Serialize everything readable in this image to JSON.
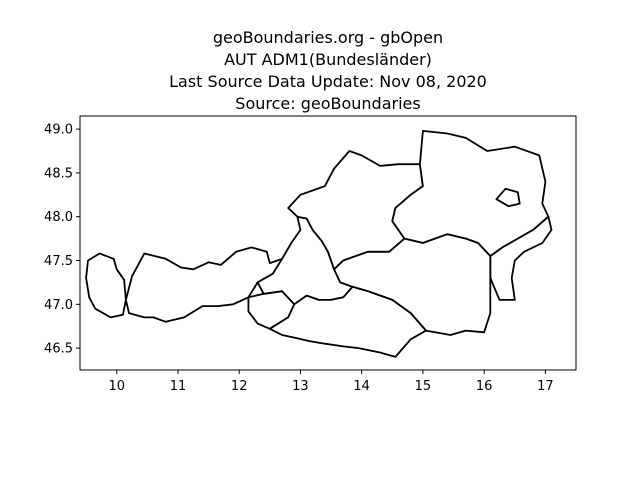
{
  "title_lines": [
    "geoBoundaries.org - gbOpen",
    "AUT ADM1(Bundesländer)",
    "Last Source Data Update: Nov 08, 2020",
    "Source: geoBoundaries"
  ],
  "map": {
    "x_range": [
      9.4,
      17.5
    ],
    "y_range": [
      46.25,
      49.15
    ],
    "x_ticks": [
      10,
      11,
      12,
      13,
      14,
      15,
      16,
      17
    ],
    "y_ticks": [
      46.5,
      47.0,
      47.5,
      48.0,
      48.5,
      49.0
    ],
    "x_tick_labels": [
      "10",
      "11",
      "12",
      "13",
      "14",
      "15",
      "16",
      "17"
    ],
    "y_tick_labels": [
      "46.5",
      "47.0",
      "47.5",
      "48.0",
      "48.5",
      "49.0"
    ],
    "line_color": "#000000",
    "fill_color": "#ffffff",
    "regions": [
      {
        "id": "vorarlberg",
        "coords": [
          [
            9.53,
            47.5
          ],
          [
            9.72,
            47.58
          ],
          [
            9.95,
            47.52
          ],
          [
            10.0,
            47.4
          ],
          [
            10.12,
            47.28
          ],
          [
            10.15,
            47.05
          ],
          [
            10.1,
            46.88
          ],
          [
            9.9,
            46.85
          ],
          [
            9.65,
            46.95
          ],
          [
            9.55,
            47.08
          ],
          [
            9.5,
            47.3
          ],
          [
            9.53,
            47.5
          ]
        ]
      },
      {
        "id": "tirol",
        "coords": [
          [
            10.15,
            47.05
          ],
          [
            10.25,
            47.32
          ],
          [
            10.45,
            47.58
          ],
          [
            10.8,
            47.52
          ],
          [
            11.05,
            47.42
          ],
          [
            11.25,
            47.4
          ],
          [
            11.5,
            47.48
          ],
          [
            11.7,
            47.45
          ],
          [
            11.95,
            47.6
          ],
          [
            12.2,
            47.65
          ],
          [
            12.45,
            47.6
          ],
          [
            12.5,
            47.47
          ],
          [
            12.7,
            47.52
          ],
          [
            12.55,
            47.35
          ],
          [
            12.3,
            47.25
          ],
          [
            12.15,
            47.08
          ],
          [
            11.9,
            47.0
          ],
          [
            11.65,
            46.98
          ],
          [
            11.4,
            46.98
          ],
          [
            11.1,
            46.85
          ],
          [
            10.8,
            46.8
          ],
          [
            10.6,
            46.85
          ],
          [
            10.45,
            46.85
          ],
          [
            10.2,
            46.9
          ],
          [
            10.15,
            47.05
          ]
        ]
      },
      {
        "id": "osttirol",
        "coords": [
          [
            12.15,
            47.08
          ],
          [
            12.4,
            47.12
          ],
          [
            12.7,
            47.15
          ],
          [
            12.9,
            47.0
          ],
          [
            12.8,
            46.85
          ],
          [
            12.5,
            46.72
          ],
          [
            12.3,
            46.78
          ],
          [
            12.15,
            46.92
          ],
          [
            12.15,
            47.08
          ]
        ]
      },
      {
        "id": "salzburg",
        "coords": [
          [
            12.7,
            47.52
          ],
          [
            12.85,
            47.7
          ],
          [
            13.0,
            47.85
          ],
          [
            12.95,
            48.0
          ],
          [
            13.1,
            47.98
          ],
          [
            13.2,
            47.85
          ],
          [
            13.35,
            47.72
          ],
          [
            13.45,
            47.6
          ],
          [
            13.55,
            47.4
          ],
          [
            13.65,
            47.25
          ],
          [
            13.85,
            47.2
          ],
          [
            13.7,
            47.08
          ],
          [
            13.5,
            47.05
          ],
          [
            13.3,
            47.05
          ],
          [
            13.1,
            47.1
          ],
          [
            12.9,
            47.0
          ],
          [
            12.7,
            47.15
          ],
          [
            12.4,
            47.12
          ],
          [
            12.3,
            47.25
          ],
          [
            12.55,
            47.35
          ],
          [
            12.7,
            47.52
          ]
        ]
      },
      {
        "id": "oberoesterreich",
        "coords": [
          [
            13.0,
            48.25
          ],
          [
            13.4,
            48.35
          ],
          [
            13.55,
            48.55
          ],
          [
            13.8,
            48.75
          ],
          [
            14.0,
            48.7
          ],
          [
            14.3,
            48.58
          ],
          [
            14.6,
            48.6
          ],
          [
            14.95,
            48.6
          ],
          [
            15.0,
            48.35
          ],
          [
            14.8,
            48.25
          ],
          [
            14.55,
            48.1
          ],
          [
            14.5,
            47.95
          ],
          [
            14.7,
            47.75
          ],
          [
            14.45,
            47.6
          ],
          [
            14.1,
            47.6
          ],
          [
            13.9,
            47.55
          ],
          [
            13.7,
            47.5
          ],
          [
            13.55,
            47.4
          ],
          [
            13.45,
            47.6
          ],
          [
            13.35,
            47.72
          ],
          [
            13.2,
            47.85
          ],
          [
            13.1,
            47.98
          ],
          [
            12.95,
            48.0
          ],
          [
            12.8,
            48.1
          ],
          [
            13.0,
            48.25
          ]
        ]
      },
      {
        "id": "niederoesterreich",
        "coords": [
          [
            14.95,
            48.6
          ],
          [
            15.0,
            48.98
          ],
          [
            15.4,
            48.95
          ],
          [
            15.7,
            48.9
          ],
          [
            16.05,
            48.75
          ],
          [
            16.5,
            48.8
          ],
          [
            16.9,
            48.7
          ],
          [
            17.0,
            48.4
          ],
          [
            16.95,
            48.15
          ],
          [
            17.05,
            48.0
          ],
          [
            16.8,
            47.85
          ],
          [
            16.55,
            47.75
          ],
          [
            16.3,
            47.65
          ],
          [
            16.1,
            47.55
          ],
          [
            15.9,
            47.7
          ],
          [
            15.7,
            47.75
          ],
          [
            15.4,
            47.8
          ],
          [
            15.0,
            47.7
          ],
          [
            14.7,
            47.75
          ],
          [
            14.5,
            47.95
          ],
          [
            14.55,
            48.1
          ],
          [
            14.8,
            48.25
          ],
          [
            15.0,
            48.35
          ],
          [
            14.95,
            48.6
          ]
        ]
      },
      {
        "id": "wien",
        "coords": [
          [
            16.2,
            48.2
          ],
          [
            16.35,
            48.32
          ],
          [
            16.55,
            48.28
          ],
          [
            16.58,
            48.15
          ],
          [
            16.4,
            48.12
          ],
          [
            16.2,
            48.2
          ]
        ]
      },
      {
        "id": "burgenland",
        "coords": [
          [
            17.05,
            48.0
          ],
          [
            17.1,
            47.85
          ],
          [
            16.95,
            47.7
          ],
          [
            16.65,
            47.6
          ],
          [
            16.5,
            47.5
          ],
          [
            16.45,
            47.3
          ],
          [
            16.5,
            47.05
          ],
          [
            16.25,
            47.05
          ],
          [
            16.1,
            47.3
          ],
          [
            16.1,
            47.55
          ],
          [
            16.3,
            47.65
          ],
          [
            16.55,
            47.75
          ],
          [
            16.8,
            47.85
          ],
          [
            17.05,
            48.0
          ]
        ]
      },
      {
        "id": "steiermark",
        "coords": [
          [
            13.85,
            47.2
          ],
          [
            14.1,
            47.15
          ],
          [
            14.5,
            47.05
          ],
          [
            14.8,
            46.9
          ],
          [
            15.05,
            46.7
          ],
          [
            15.45,
            46.65
          ],
          [
            15.7,
            46.7
          ],
          [
            16.0,
            46.68
          ],
          [
            16.1,
            46.9
          ],
          [
            16.1,
            47.3
          ],
          [
            16.1,
            47.55
          ],
          [
            15.9,
            47.7
          ],
          [
            15.7,
            47.75
          ],
          [
            15.4,
            47.8
          ],
          [
            15.0,
            47.7
          ],
          [
            14.7,
            47.75
          ],
          [
            14.45,
            47.6
          ],
          [
            14.1,
            47.6
          ],
          [
            13.9,
            47.55
          ],
          [
            13.7,
            47.5
          ],
          [
            13.55,
            47.4
          ],
          [
            13.65,
            47.25
          ],
          [
            13.85,
            47.2
          ]
        ]
      },
      {
        "id": "kaernten",
        "coords": [
          [
            12.8,
            46.85
          ],
          [
            12.9,
            47.0
          ],
          [
            13.1,
            47.1
          ],
          [
            13.3,
            47.05
          ],
          [
            13.5,
            47.05
          ],
          [
            13.7,
            47.08
          ],
          [
            13.85,
            47.2
          ],
          [
            14.1,
            47.15
          ],
          [
            14.5,
            47.05
          ],
          [
            14.8,
            46.9
          ],
          [
            15.05,
            46.7
          ],
          [
            14.8,
            46.6
          ],
          [
            14.55,
            46.4
          ],
          [
            14.3,
            46.45
          ],
          [
            13.95,
            46.5
          ],
          [
            13.7,
            46.52
          ],
          [
            13.4,
            46.55
          ],
          [
            13.15,
            46.58
          ],
          [
            12.9,
            46.62
          ],
          [
            12.7,
            46.65
          ],
          [
            12.5,
            46.72
          ],
          [
            12.8,
            46.85
          ]
        ]
      }
    ]
  }
}
